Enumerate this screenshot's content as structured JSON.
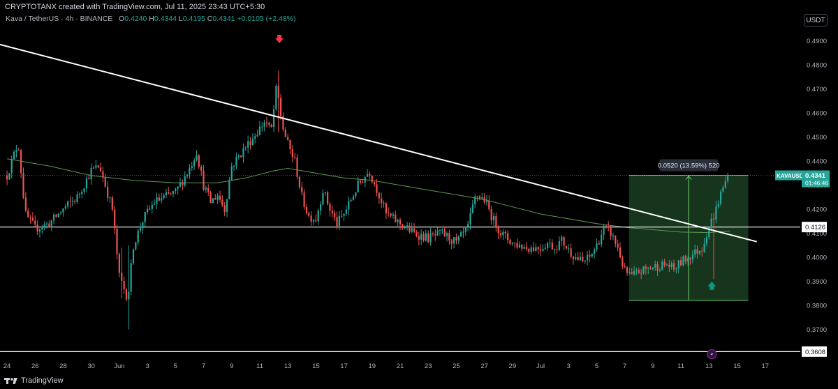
{
  "header": {
    "attribution": "CRYPTOTANX created with TradingView.com, Jul 11, 2025 23:43 UTC+5:30"
  },
  "symbol_bar": {
    "pair": "Kava / TetherUS · 4h · BINANCE",
    "o_label": "O",
    "o_value": "0.4240",
    "h_label": "H",
    "h_value": "0.4344",
    "l_label": "L",
    "l_value": "0.4195",
    "c_label": "C",
    "c_value": "0.4341",
    "change": "+0.0105 (+2.48%)"
  },
  "currency_badge": "USDT",
  "footer": {
    "brand": "TradingView"
  },
  "colors": {
    "up": "#26a69a",
    "down": "#ef5350",
    "ma": "#5b9b4e",
    "price_label_bg": "#26a69a",
    "range_fill": "#1b3d22",
    "range_line": "#6fd36f",
    "arrow_down": "#f23645",
    "arrow_up": "#089981"
  },
  "icons": [
    "arrow-down-icon",
    "arrow-up-icon",
    "lightning-icon",
    "tradingview-logo-icon"
  ],
  "chart_data": {
    "type": "candlestick",
    "timeframe": "4h",
    "ylim": [
      0.358,
      0.496
    ],
    "y_ticks": [
      "0.4900",
      "0.4800",
      "0.4700",
      "0.4600",
      "0.4500",
      "0.4400",
      "0.4300",
      "0.4200",
      "0.4100",
      "0.4000",
      "0.3900",
      "0.3800",
      "0.3700"
    ],
    "x_ticks": [
      "24",
      "26",
      "28",
      "30",
      "Jun",
      "3",
      "5",
      "7",
      "9",
      "11",
      "13",
      "15",
      "17",
      "19",
      "21",
      "23",
      "25",
      "27",
      "29",
      "Jul",
      "3",
      "5",
      "7",
      "9",
      "11",
      "13",
      "15",
      "17"
    ],
    "x_domain_days": [
      -0.5,
      56.5
    ],
    "price_path": [
      [
        0,
        0.434
      ],
      [
        0.8,
        0.448
      ],
      [
        1.3,
        0.418
      ],
      [
        2,
        0.412
      ],
      [
        3,
        0.414
      ],
      [
        4,
        0.42
      ],
      [
        5,
        0.425
      ],
      [
        6,
        0.436
      ],
      [
        6.6,
        0.438
      ],
      [
        7.5,
        0.42
      ],
      [
        8,
        0.392
      ],
      [
        8.6,
        0.383
      ],
      [
        9,
        0.405
      ],
      [
        9.7,
        0.416
      ],
      [
        10.5,
        0.423
      ],
      [
        11.2,
        0.425
      ],
      [
        12,
        0.427
      ],
      [
        13,
        0.437
      ],
      [
        13.5,
        0.444
      ],
      [
        14,
        0.43
      ],
      [
        14.5,
        0.423
      ],
      [
        15,
        0.426
      ],
      [
        15.5,
        0.42
      ],
      [
        16,
        0.438
      ],
      [
        17,
        0.446
      ],
      [
        17.8,
        0.452
      ],
      [
        18.4,
        0.457
      ],
      [
        18.8,
        0.452
      ],
      [
        19.2,
        0.471
      ],
      [
        19.6,
        0.455
      ],
      [
        20,
        0.447
      ],
      [
        20.5,
        0.44
      ],
      [
        21,
        0.425
      ],
      [
        21.5,
        0.417
      ],
      [
        22,
        0.416
      ],
      [
        22.5,
        0.428
      ],
      [
        23,
        0.42
      ],
      [
        23.5,
        0.414
      ],
      [
        24,
        0.418
      ],
      [
        25,
        0.43
      ],
      [
        25.8,
        0.436
      ],
      [
        26.5,
        0.426
      ],
      [
        27,
        0.418
      ],
      [
        28,
        0.414
      ],
      [
        29,
        0.41
      ],
      [
        30,
        0.408
      ],
      [
        31,
        0.41
      ],
      [
        32,
        0.406
      ],
      [
        32.8,
        0.412
      ],
      [
        33.4,
        0.426
      ],
      [
        34,
        0.424
      ],
      [
        34.6,
        0.416
      ],
      [
        35.2,
        0.41
      ],
      [
        36,
        0.406
      ],
      [
        37,
        0.404
      ],
      [
        38,
        0.404
      ],
      [
        38.5,
        0.406
      ],
      [
        39,
        0.404
      ],
      [
        39.5,
        0.407
      ],
      [
        40,
        0.403
      ],
      [
        40.5,
        0.4
      ],
      [
        41,
        0.398
      ],
      [
        41.5,
        0.4
      ],
      [
        42,
        0.405
      ],
      [
        42.5,
        0.412
      ],
      [
        43,
        0.41
      ],
      [
        43.5,
        0.404
      ],
      [
        44,
        0.394
      ],
      [
        44.5,
        0.392
      ],
      [
        45,
        0.394
      ],
      [
        46,
        0.396
      ],
      [
        47,
        0.397
      ],
      [
        47.5,
        0.395
      ],
      [
        48,
        0.398
      ],
      [
        48.5,
        0.4
      ],
      [
        49,
        0.402
      ],
      [
        49.5,
        0.404
      ],
      [
        50,
        0.413
      ],
      [
        50.4,
        0.418
      ],
      [
        50.8,
        0.426
      ],
      [
        51.1,
        0.43
      ],
      [
        51.3,
        0.4341
      ]
    ],
    "notable_wicks": [
      {
        "day": 19.4,
        "high": 0.4775,
        "low": 0.452
      },
      {
        "day": 8.6,
        "high": 0.405,
        "low": 0.37
      },
      {
        "day": 8.1,
        "high": 0.404,
        "low": 0.383
      },
      {
        "day": 50.4,
        "high": 0.412,
        "low": 0.391
      }
    ],
    "moving_average": [
      [
        0,
        0.441
      ],
      [
        3,
        0.438
      ],
      [
        6,
        0.434
      ],
      [
        9,
        0.432
      ],
      [
        12,
        0.431
      ],
      [
        15,
        0.431
      ],
      [
        17,
        0.433
      ],
      [
        19,
        0.436
      ],
      [
        20,
        0.437
      ],
      [
        22,
        0.435
      ],
      [
        24,
        0.433
      ],
      [
        26,
        0.432
      ],
      [
        28,
        0.43
      ],
      [
        30,
        0.428
      ],
      [
        32,
        0.426
      ],
      [
        34,
        0.424
      ],
      [
        36,
        0.421
      ],
      [
        38,
        0.418
      ],
      [
        40,
        0.416
      ],
      [
        42,
        0.414
      ],
      [
        44,
        0.4125
      ],
      [
        46,
        0.4115
      ],
      [
        48,
        0.4105
      ],
      [
        50,
        0.4103
      ],
      [
        51.5,
        0.411
      ]
    ],
    "trendline": {
      "from": [
        -0.5,
        0.4885
      ],
      "to": [
        53.4,
        0.4065
      ]
    },
    "horizontal_lines": [
      0.4126,
      0.3608
    ],
    "current_price": {
      "symbol": "KAVAUSDT",
      "price": "0.4341",
      "countdown": "01:46:46",
      "value": 0.4341
    },
    "price_labels": [
      {
        "text": "0.4126",
        "value": 0.4126
      },
      {
        "text": "0.3608",
        "value": 0.3608
      }
    ],
    "range_measure": {
      "label": "0.0520 (13.59%) 520",
      "from_day": 44.3,
      "to_day": 52.8,
      "low": 0.3821,
      "high": 0.4341,
      "vertical_at_day": 48.55
    },
    "markers": [
      {
        "type": "arrow-down",
        "day": 19.4,
        "price": 0.4905
      },
      {
        "type": "arrow-up",
        "day": 50.2,
        "price": 0.3885
      }
    ]
  }
}
